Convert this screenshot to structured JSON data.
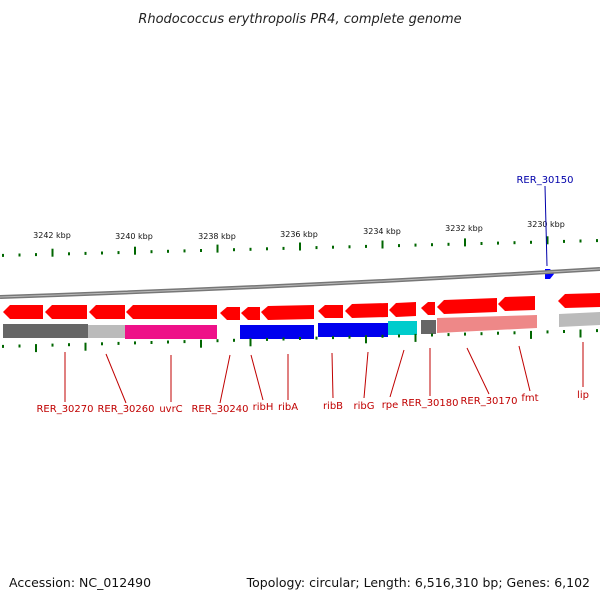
{
  "title": "Rhodococcus erythropolis PR4, complete genome",
  "ruler": {
    "ticks": [
      "3242 kbp",
      "3240 kbp",
      "3238 kbp",
      "3236 kbp",
      "3234 kbp",
      "3232 kbp",
      "3230 kbp"
    ]
  },
  "forward_genes": [
    {
      "name": "RER_30150",
      "color": "#0000ff"
    }
  ],
  "gene_labels": [
    "RER_30270",
    "RER_30260",
    "uvrC",
    "RER_30240",
    "ribH",
    "ribA",
    "ribB",
    "ribG",
    "rpe",
    "RER_30180",
    "RER_30170",
    "fmt",
    "lip"
  ],
  "track_colors": {
    "reverse_strand": "#ff0000",
    "gray": "#666666",
    "light_gray": "#bbbbbb",
    "magenta": "#ee1188",
    "blue": "#0000ee",
    "cyan": "#00cccc",
    "pink": "#ee8888",
    "gc_tick": "#006600"
  },
  "footer": {
    "accession": "Accession: NC_012490",
    "summary": "Topology: circular; Length: 6,516,310 bp; Genes: 6,102"
  }
}
